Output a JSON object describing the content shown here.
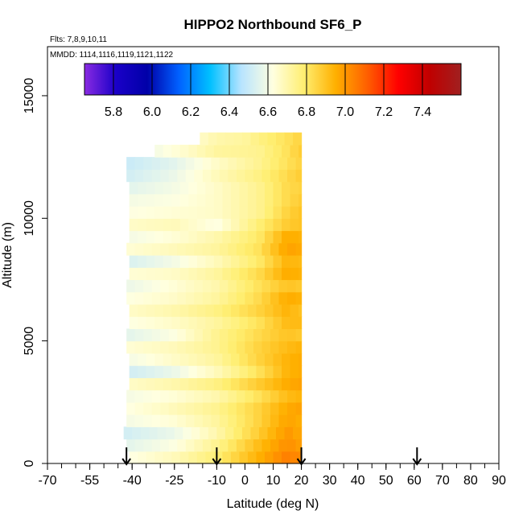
{
  "chart_data": {
    "type": "heatmap",
    "title": "HIPPO2 Northbound SF6_P",
    "flights_label": "Flts: 7,8,9,10,11",
    "dates_label": "MMDD: 1114,1116,1119,1121,1122",
    "xlabel": "Latitude (deg N)",
    "ylabel": "Altitude (m)",
    "xlim": [
      -70,
      90
    ],
    "ylim": [
      0,
      17000
    ],
    "x_ticks": [
      -70,
      -55,
      -40,
      -25,
      -10,
      0,
      10,
      20,
      30,
      40,
      50,
      60,
      70,
      80,
      90
    ],
    "x_tick_labels": [
      "-70",
      "-55",
      "-40",
      "-25",
      "-10",
      "0",
      "10",
      "20",
      "30",
      "40",
      "50",
      "60",
      "70",
      "80",
      "90"
    ],
    "y_ticks": [
      0,
      5000,
      10000,
      15000
    ],
    "y_tick_labels": [
      "0",
      "5000",
      "10000",
      "15000"
    ],
    "colorbar": {
      "min": 5.65,
      "max": 7.6,
      "ticks": [
        5.8,
        6.0,
        6.2,
        6.4,
        6.6,
        6.8,
        7.0,
        7.2,
        7.4
      ],
      "tick_labels": [
        "5.8",
        "6.0",
        "6.2",
        "6.4",
        "6.6",
        "6.8",
        "7.0",
        "7.2",
        "7.4"
      ],
      "stops": [
        "#8a2be2",
        "#1a00c8",
        "#0000a8",
        "#0060ff",
        "#00c0ff",
        "#b8e4ff",
        "#ffffe0",
        "#ffee70",
        "#ffb000",
        "#ff6000",
        "#ff0000",
        "#c00000",
        "#a02020"
      ]
    },
    "profile_arrows": [
      -42,
      -10,
      20,
      61
    ],
    "data_extent": {
      "lat_min": -43,
      "lat_max": 20,
      "alt_min": 0,
      "alt_max": 13500
    },
    "profiles": [
      {
        "alt_bottom": 0,
        "alt_top": 500,
        "lat_start": -41,
        "lat_end": 20,
        "lat_points": [
          -41,
          -25,
          -10,
          5,
          15,
          20
        ],
        "values": [
          6.62,
          6.68,
          6.78,
          6.95,
          7.05,
          7.02
        ]
      },
      {
        "alt_bottom": 500,
        "alt_top": 1000,
        "lat_start": -42,
        "lat_end": 20,
        "lat_points": [
          -42,
          -25,
          -10,
          5,
          15,
          20
        ],
        "values": [
          6.56,
          6.62,
          6.74,
          6.92,
          7.02,
          6.98
        ]
      },
      {
        "alt_bottom": 1000,
        "alt_top": 1500,
        "lat_start": -43,
        "lat_end": 20,
        "lat_points": [
          -43,
          -25,
          -10,
          5,
          15,
          20
        ],
        "values": [
          6.52,
          6.58,
          6.7,
          6.88,
          7.0,
          6.96
        ]
      },
      {
        "alt_bottom": 1500,
        "alt_top": 2000,
        "lat_start": -42,
        "lat_end": 20,
        "lat_points": [
          -42,
          -25,
          -10,
          5,
          15,
          20
        ],
        "values": [
          6.6,
          6.64,
          6.72,
          6.86,
          6.98,
          6.95
        ]
      },
      {
        "alt_bottom": 2000,
        "alt_top": 2500,
        "lat_start": -42,
        "lat_end": 20,
        "lat_points": [
          -42,
          -25,
          -10,
          5,
          15,
          20
        ],
        "values": [
          6.62,
          6.68,
          6.74,
          6.86,
          6.96,
          6.98
        ]
      },
      {
        "alt_bottom": 2500,
        "alt_top": 3000,
        "lat_start": -42,
        "lat_end": 20,
        "lat_points": [
          -42,
          -25,
          -10,
          5,
          15,
          20
        ],
        "values": [
          6.6,
          6.64,
          6.7,
          6.82,
          6.92,
          6.94
        ]
      },
      {
        "alt_bottom": 3000,
        "alt_top": 3500,
        "lat_start": -41,
        "lat_end": 20,
        "lat_points": [
          -41,
          -25,
          -10,
          5,
          15,
          20
        ],
        "values": [
          6.66,
          6.7,
          6.76,
          6.88,
          6.96,
          6.98
        ]
      },
      {
        "alt_bottom": 3500,
        "alt_top": 4000,
        "lat_start": -41,
        "lat_end": 20,
        "lat_points": [
          -41,
          -25,
          -10,
          5,
          15,
          20
        ],
        "values": [
          6.52,
          6.58,
          6.68,
          6.82,
          6.94,
          6.96
        ]
      },
      {
        "alt_bottom": 4000,
        "alt_top": 4500,
        "lat_start": -41,
        "lat_end": 20,
        "lat_points": [
          -41,
          -25,
          -10,
          5,
          15,
          20
        ],
        "values": [
          6.6,
          6.66,
          6.72,
          6.86,
          6.94,
          6.96
        ]
      },
      {
        "alt_bottom": 4500,
        "alt_top": 5000,
        "lat_start": -42,
        "lat_end": 20,
        "lat_points": [
          -42,
          -25,
          -10,
          5,
          15,
          20
        ],
        "values": [
          6.64,
          6.68,
          6.74,
          6.86,
          6.92,
          6.94
        ]
      },
      {
        "alt_bottom": 5000,
        "alt_top": 5500,
        "lat_start": -42,
        "lat_end": 20,
        "lat_points": [
          -42,
          -25,
          -10,
          5,
          15,
          20
        ],
        "values": [
          6.56,
          6.62,
          6.74,
          6.84,
          6.9,
          6.88
        ]
      },
      {
        "alt_bottom": 5500,
        "alt_top": 6000,
        "lat_start": -41,
        "lat_end": 20,
        "lat_points": [
          -41,
          -25,
          -10,
          5,
          15,
          20
        ],
        "values": [
          6.62,
          6.66,
          6.72,
          6.82,
          6.92,
          6.92
        ]
      },
      {
        "alt_bottom": 6000,
        "alt_top": 6500,
        "lat_start": -41,
        "lat_end": 20,
        "lat_points": [
          -41,
          -25,
          -10,
          5,
          15,
          20
        ],
        "values": [
          6.66,
          6.7,
          6.76,
          6.86,
          6.94,
          6.9
        ]
      },
      {
        "alt_bottom": 6500,
        "alt_top": 7000,
        "lat_start": -42,
        "lat_end": 20,
        "lat_points": [
          -42,
          -25,
          -10,
          5,
          15,
          20
        ],
        "values": [
          6.62,
          6.66,
          6.72,
          6.84,
          6.96,
          6.94
        ]
      },
      {
        "alt_bottom": 7000,
        "alt_top": 7500,
        "lat_start": -42,
        "lat_end": 20,
        "lat_points": [
          -42,
          -25,
          -10,
          5,
          15,
          20
        ],
        "values": [
          6.58,
          6.64,
          6.7,
          6.82,
          6.9,
          6.88
        ]
      },
      {
        "alt_bottom": 7500,
        "alt_top": 8000,
        "lat_start": -41,
        "lat_end": 20,
        "lat_points": [
          -41,
          -25,
          -10,
          5,
          15,
          20
        ],
        "values": [
          6.64,
          6.66,
          6.72,
          6.84,
          6.96,
          6.94
        ]
      },
      {
        "alt_bottom": 8000,
        "alt_top": 8500,
        "lat_start": -41,
        "lat_end": 20,
        "lat_points": [
          -41,
          -25,
          -10,
          5,
          15,
          20
        ],
        "values": [
          6.54,
          6.6,
          6.68,
          6.8,
          6.94,
          6.92
        ]
      },
      {
        "alt_bottom": 8500,
        "alt_top": 9000,
        "lat_start": -42,
        "lat_end": 20,
        "lat_points": [
          -42,
          -25,
          -10,
          5,
          15,
          20
        ],
        "values": [
          6.64,
          6.68,
          6.72,
          6.82,
          6.98,
          6.96
        ]
      },
      {
        "alt_bottom": 9000,
        "alt_top": 9500,
        "lat_start": -41,
        "lat_end": 20,
        "lat_points": [
          -41,
          -25,
          -10,
          5,
          15,
          20
        ],
        "values": [
          6.6,
          6.64,
          6.7,
          6.8,
          6.96,
          6.94
        ]
      },
      {
        "alt_bottom": 9500,
        "alt_top": 10000,
        "lat_start": -41,
        "lat_end": 20,
        "lat_points": [
          -41,
          -25,
          -10,
          5,
          15,
          20
        ],
        "values": [
          6.66,
          6.68,
          6.62,
          6.78,
          6.88,
          6.9
        ]
      },
      {
        "alt_bottom": 10000,
        "alt_top": 10500,
        "lat_start": -41,
        "lat_end": 20,
        "lat_points": [
          -41,
          -25,
          -10,
          5,
          15,
          20
        ],
        "values": [
          6.62,
          6.64,
          6.66,
          6.74,
          6.86,
          6.9
        ]
      },
      {
        "alt_bottom": 10500,
        "alt_top": 11000,
        "lat_start": -41,
        "lat_end": 20,
        "lat_points": [
          -41,
          -25,
          -10,
          5,
          15,
          20
        ],
        "values": [
          6.6,
          6.62,
          6.66,
          6.74,
          6.84,
          6.88
        ]
      },
      {
        "alt_bottom": 11000,
        "alt_top": 11500,
        "lat_start": -41,
        "lat_end": 20,
        "lat_points": [
          -41,
          -25,
          -10,
          5,
          15,
          20
        ],
        "values": [
          6.56,
          6.6,
          6.66,
          6.74,
          6.84,
          6.86
        ]
      },
      {
        "alt_bottom": 11500,
        "alt_top": 12000,
        "lat_start": -42,
        "lat_end": 20,
        "lat_points": [
          -42,
          -25,
          -10,
          5,
          15,
          20
        ],
        "values": [
          6.52,
          6.58,
          6.68,
          6.76,
          6.84,
          6.88
        ]
      },
      {
        "alt_bottom": 12000,
        "alt_top": 12500,
        "lat_start": -42,
        "lat_end": 20,
        "lat_points": [
          -42,
          -25,
          -10,
          5,
          15,
          20
        ],
        "values": [
          6.5,
          6.56,
          6.66,
          6.74,
          6.82,
          6.86
        ]
      },
      {
        "alt_bottom": 12500,
        "alt_top": 13000,
        "lat_start": -32,
        "lat_end": 20,
        "lat_points": [
          -32,
          -20,
          -10,
          5,
          15,
          20
        ],
        "values": [
          6.6,
          6.66,
          6.72,
          6.74,
          6.82,
          6.88
        ]
      },
      {
        "alt_bottom": 13000,
        "alt_top": 13500,
        "lat_start": -16,
        "lat_end": 20,
        "lat_points": [
          -16,
          -10,
          0,
          5,
          15,
          20
        ],
        "values": [
          6.66,
          6.7,
          6.72,
          6.76,
          6.82,
          6.86
        ]
      }
    ]
  }
}
